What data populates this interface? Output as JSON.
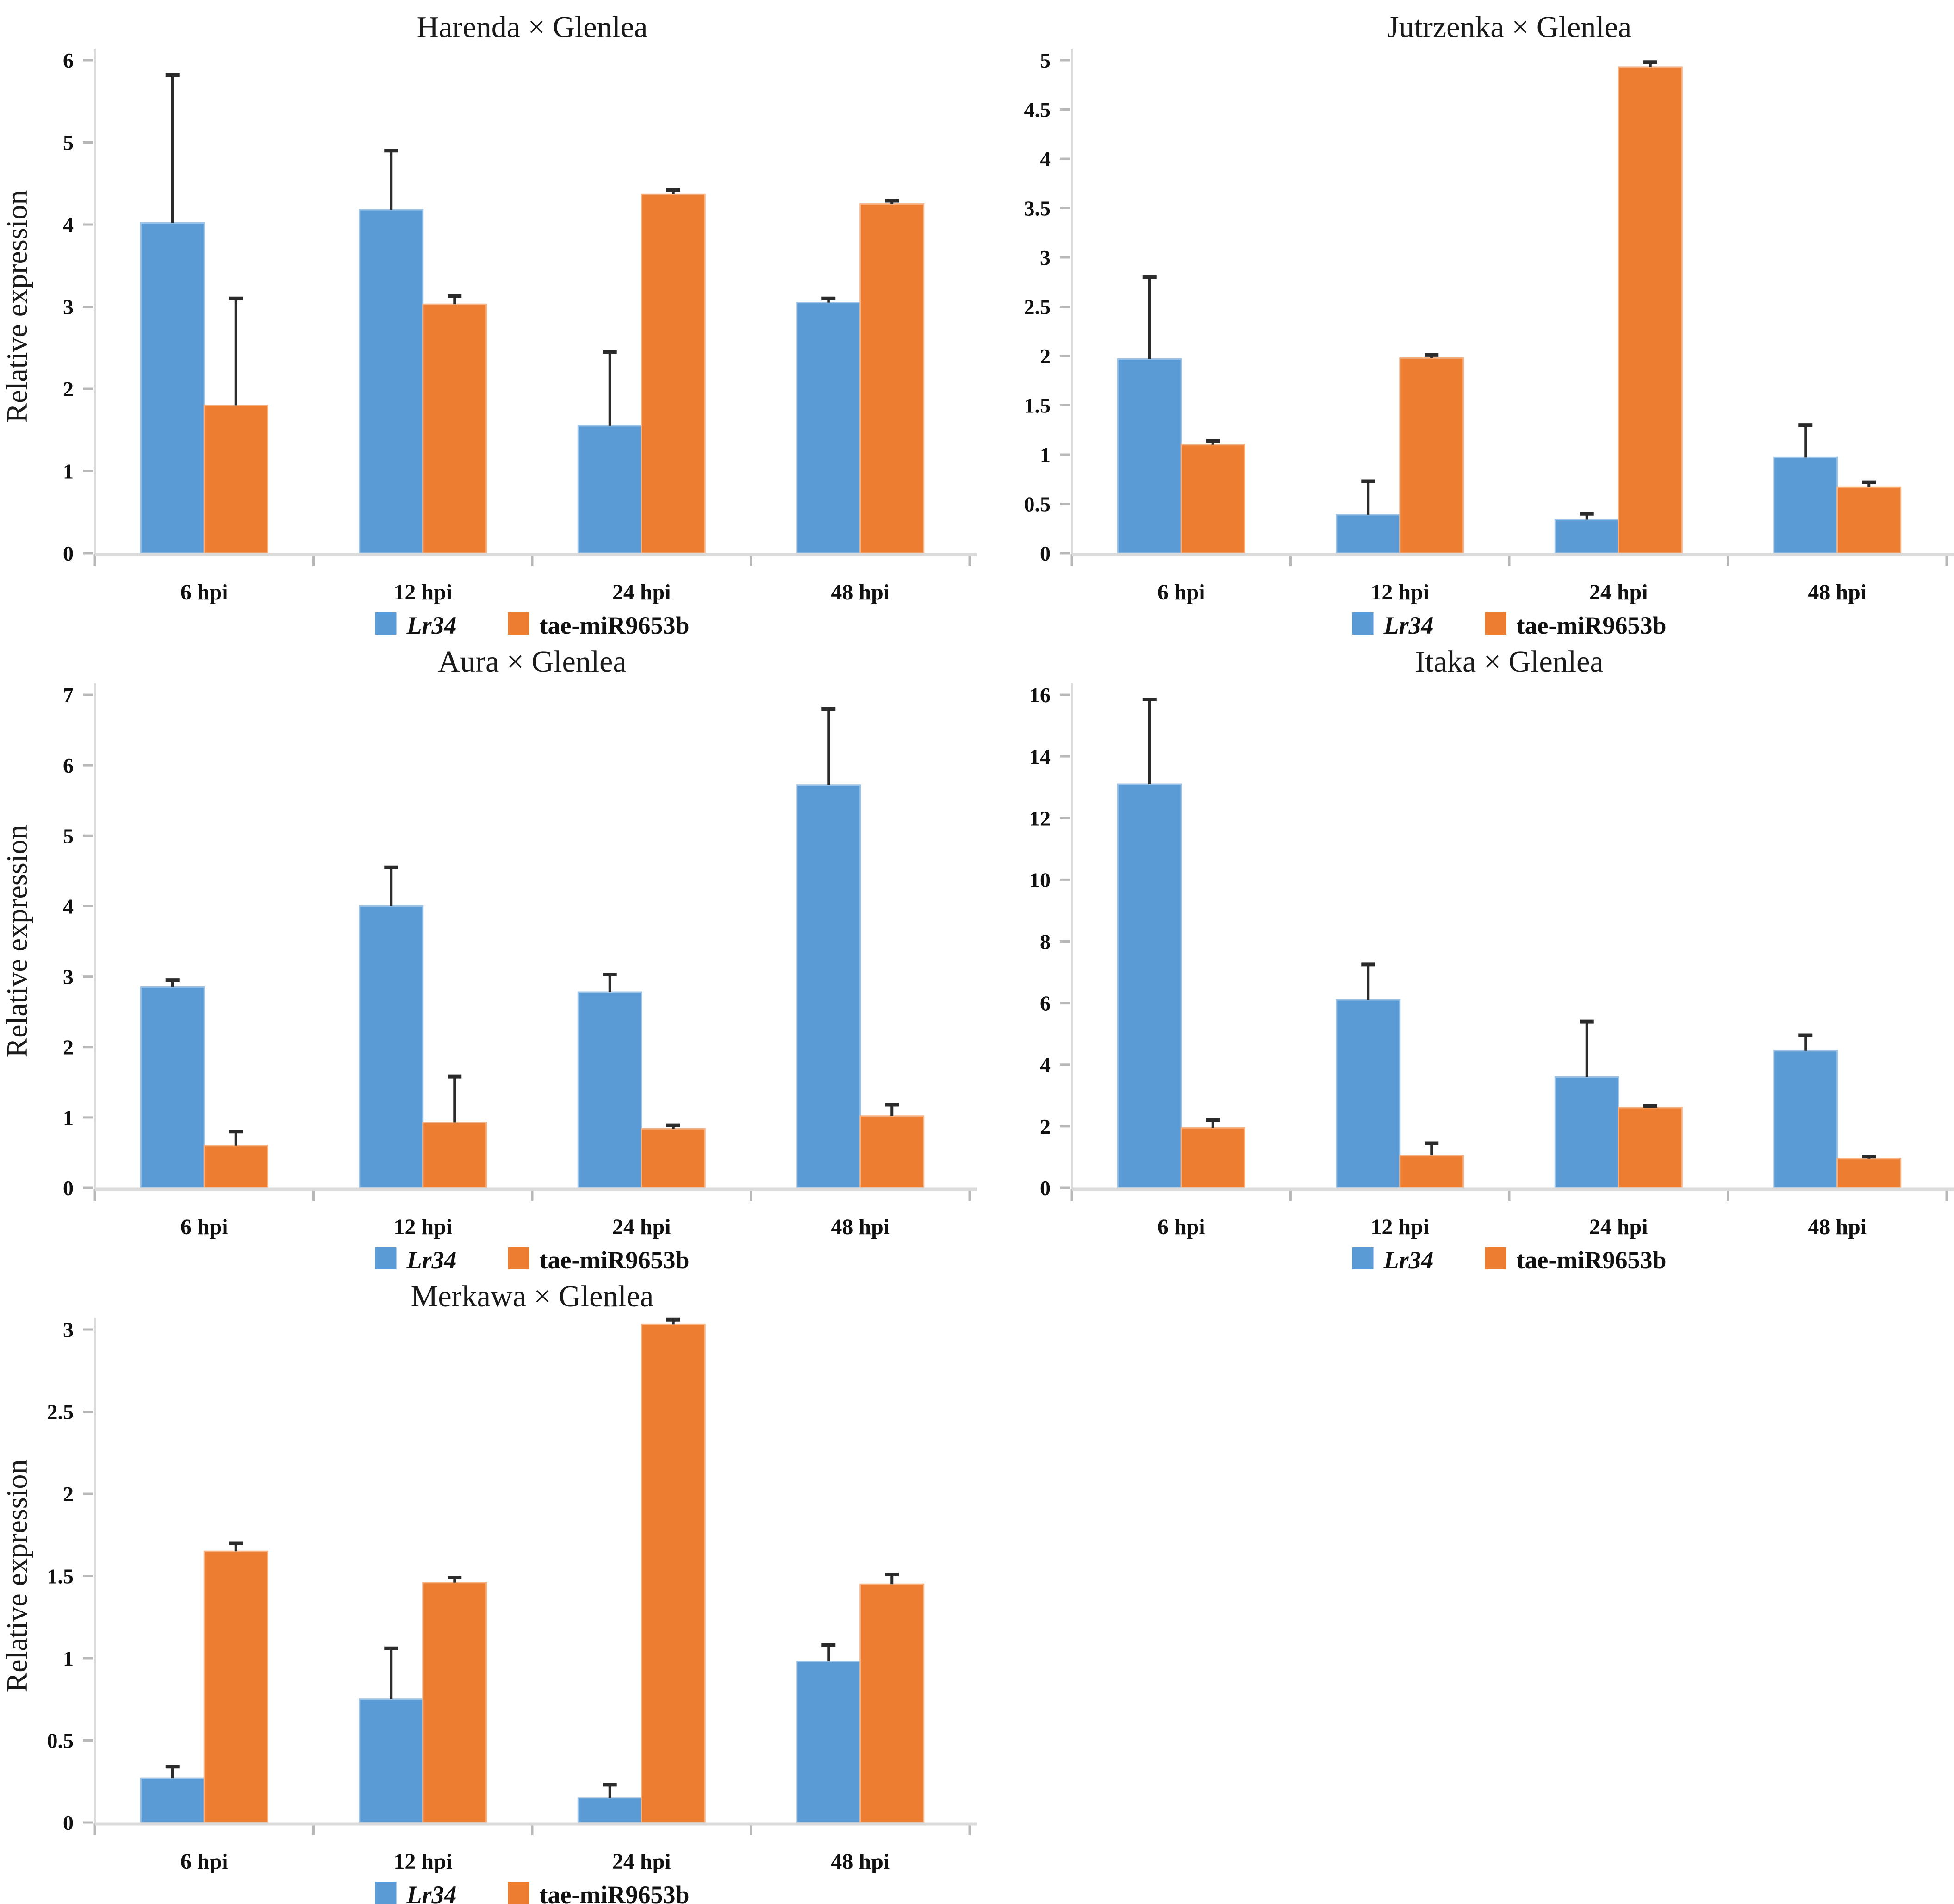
{
  "figure": {
    "ylabel": "Relative expression",
    "background": "#FFFFFF",
    "text_color": "#1A1A1A",
    "axis_color": "#DBDBDB",
    "tick_color": "#B8B8B8",
    "error_color": "#2B2B2B",
    "series_colors": {
      "Lr34": "#5B9BD5",
      "tae-miR9653b": "#ED7D31"
    }
  },
  "legend": {
    "items": [
      {
        "label": "Lr34",
        "color": "#5B9BD5",
        "italic": true
      },
      {
        "label": "tae-miR9653b",
        "color": "#ED7D31",
        "italic": false
      }
    ]
  },
  "chart_data": [
    {
      "type": "bar",
      "title": "Harenda × Glenlea",
      "ylabel": "Relative expression",
      "xlabel": "",
      "categories": [
        "6 hpi",
        "12 hpi",
        "24 hpi",
        "48 hpi"
      ],
      "ylim": [
        0,
        6
      ],
      "ytick_step": 1,
      "grid": false,
      "legend_position": "bottom",
      "series": [
        {
          "name": "Lr34",
          "color": "#5B9BD5",
          "border": "#9DC3E6",
          "italic": true,
          "values": [
            4.02,
            4.18,
            1.55,
            3.05
          ],
          "errors_plus": [
            1.8,
            0.72,
            0.9,
            0.05
          ]
        },
        {
          "name": "tae-miR9653b",
          "color": "#ED7D31",
          "border": "#F4B183",
          "italic": false,
          "values": [
            1.8,
            3.03,
            4.37,
            4.25
          ],
          "errors_plus": [
            1.3,
            0.1,
            0.05,
            0.04
          ]
        }
      ]
    },
    {
      "type": "bar",
      "title": "Jutrzenka × Glenlea",
      "ylabel": "",
      "xlabel": "",
      "categories": [
        "6 hpi",
        "12 hpi",
        "24 hpi",
        "48 hpi"
      ],
      "ylim": [
        0,
        5
      ],
      "ytick_step": 0.5,
      "grid": false,
      "legend_position": "bottom",
      "series": [
        {
          "name": "Lr34",
          "color": "#5B9BD5",
          "border": "#9DC3E6",
          "italic": true,
          "values": [
            1.97,
            0.39,
            0.34,
            0.97
          ],
          "errors_plus": [
            0.83,
            0.34,
            0.06,
            0.33
          ]
        },
        {
          "name": "tae-miR9653b",
          "color": "#ED7D31",
          "border": "#F4B183",
          "italic": false,
          "values": [
            1.1,
            1.98,
            4.93,
            0.67
          ],
          "errors_plus": [
            0.04,
            0.03,
            0.05,
            0.05
          ]
        }
      ]
    },
    {
      "type": "bar",
      "title": "Aura × Glenlea",
      "ylabel": "Relative expression",
      "xlabel": "",
      "categories": [
        "6 hpi",
        "12 hpi",
        "24 hpi",
        "48 hpi"
      ],
      "ylim": [
        0,
        7
      ],
      "ytick_step": 1,
      "grid": false,
      "legend_position": "bottom",
      "series": [
        {
          "name": "Lr34",
          "color": "#5B9BD5",
          "border": "#9DC3E6",
          "italic": true,
          "values": [
            2.85,
            4.0,
            2.78,
            5.72
          ],
          "errors_plus": [
            0.1,
            0.55,
            0.25,
            1.08
          ]
        },
        {
          "name": "tae-miR9653b",
          "color": "#ED7D31",
          "border": "#F4B183",
          "italic": false,
          "values": [
            0.6,
            0.93,
            0.84,
            1.02
          ],
          "errors_plus": [
            0.2,
            0.65,
            0.05,
            0.16
          ]
        }
      ]
    },
    {
      "type": "bar",
      "title": "Itaka × Glenlea",
      "ylabel": "",
      "xlabel": "",
      "categories": [
        "6 hpi",
        "12 hpi",
        "24 hpi",
        "48 hpi"
      ],
      "ylim": [
        0,
        16
      ],
      "ytick_step": 2,
      "grid": false,
      "legend_position": "bottom",
      "series": [
        {
          "name": "Lr34",
          "color": "#5B9BD5",
          "border": "#9DC3E6",
          "italic": true,
          "values": [
            13.1,
            6.1,
            3.6,
            4.45
          ],
          "errors_plus": [
            2.75,
            1.15,
            1.8,
            0.5
          ]
        },
        {
          "name": "tae-miR9653b",
          "color": "#ED7D31",
          "border": "#F4B183",
          "italic": false,
          "values": [
            1.95,
            1.05,
            2.6,
            0.95
          ],
          "errors_plus": [
            0.25,
            0.4,
            0.06,
            0.07
          ]
        }
      ]
    },
    {
      "type": "bar",
      "title": "Merkawa × Glenlea",
      "ylabel": "Relative expression",
      "xlabel": "",
      "categories": [
        "6 hpi",
        "12 hpi",
        "24 hpi",
        "48 hpi"
      ],
      "ylim": [
        0,
        3
      ],
      "ytick_step": 0.5,
      "grid": false,
      "legend_position": "bottom",
      "series": [
        {
          "name": "Lr34",
          "color": "#5B9BD5",
          "border": "#9DC3E6",
          "italic": true,
          "values": [
            0.27,
            0.75,
            0.15,
            0.98
          ],
          "errors_plus": [
            0.07,
            0.31,
            0.08,
            0.1
          ]
        },
        {
          "name": "tae-miR9653b",
          "color": "#ED7D31",
          "border": "#F4B183",
          "italic": false,
          "values": [
            1.65,
            1.46,
            3.03,
            1.45
          ],
          "errors_plus": [
            0.05,
            0.03,
            0.03,
            0.06
          ]
        }
      ]
    }
  ]
}
